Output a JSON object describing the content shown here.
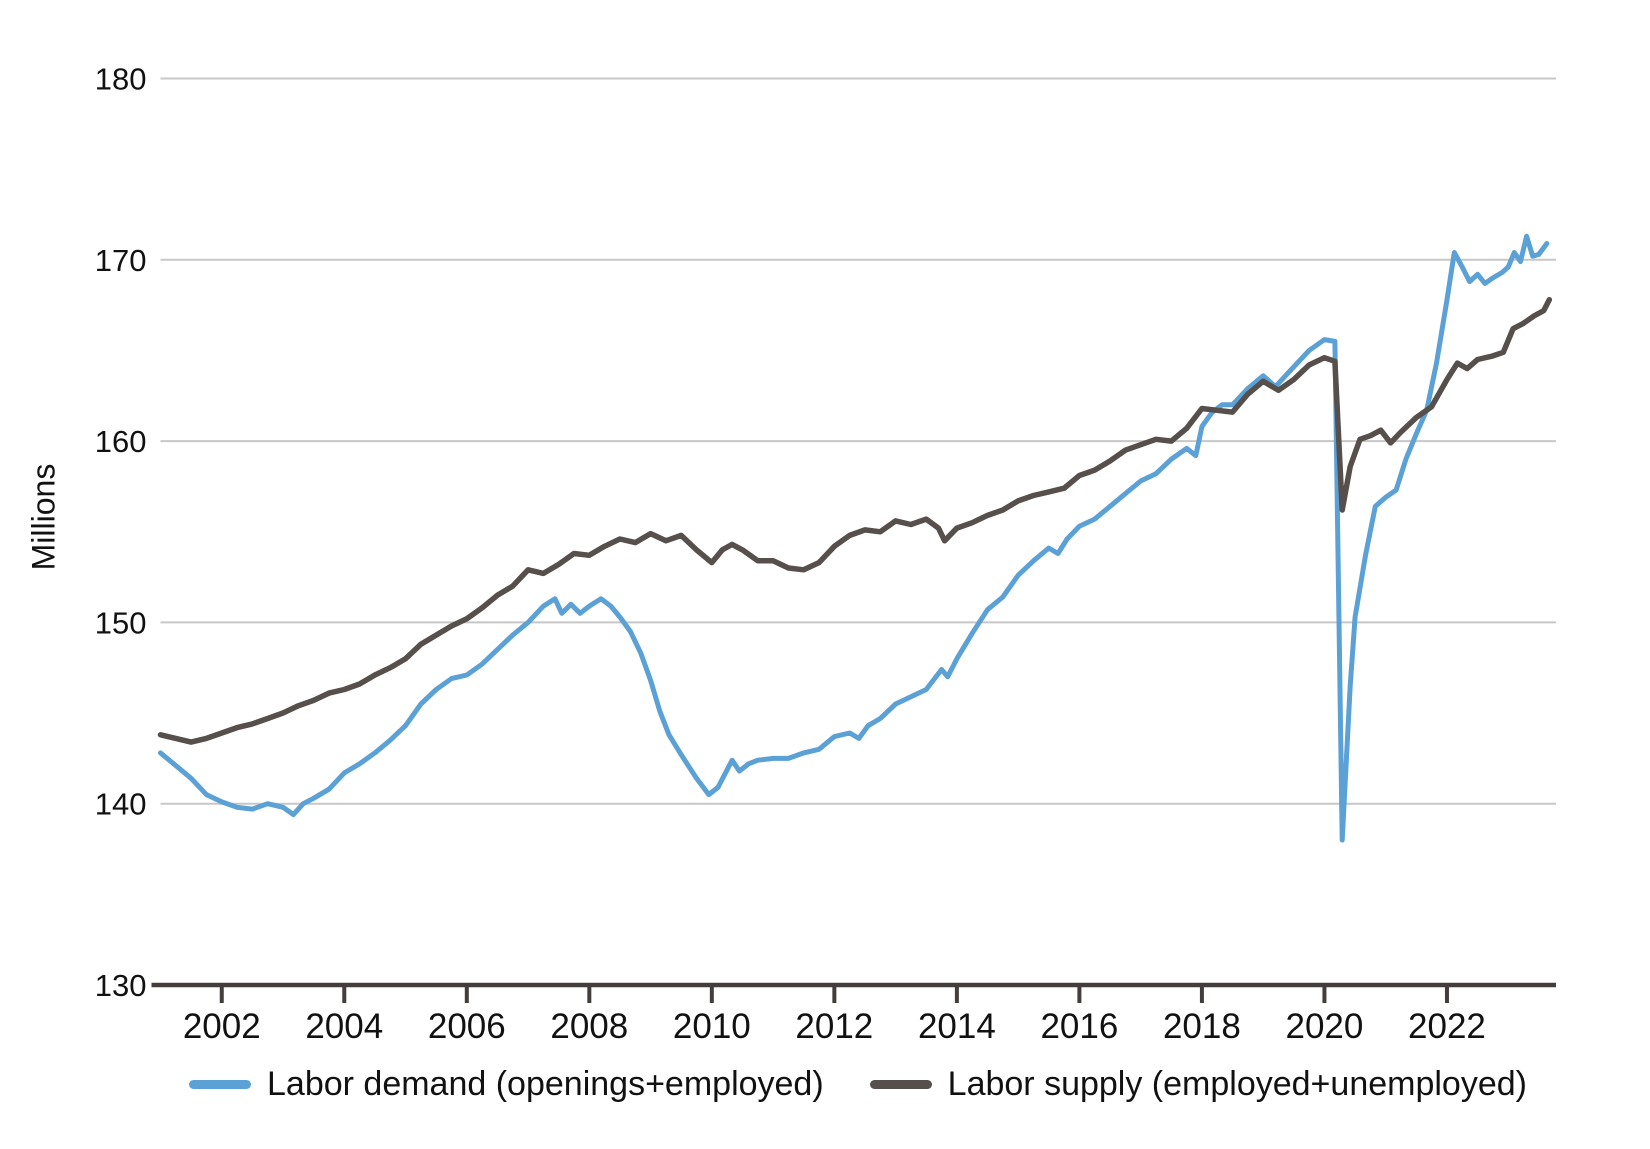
{
  "page": {
    "background": "#ffffff"
  },
  "chart_data": {
    "type": "line",
    "title": "",
    "y_axis": {
      "title": "Millions",
      "min": 130,
      "max": 180,
      "ticks": [
        130,
        140,
        150,
        160,
        170,
        180
      ]
    },
    "x_axis": {
      "min": 2001.0,
      "max": 2023.78,
      "ticks": [
        2002,
        2004,
        2006,
        2008,
        2010,
        2012,
        2014,
        2016,
        2018,
        2020,
        2022
      ]
    },
    "grid": true,
    "legend_position": "bottom",
    "colors": {
      "demand": "#5ba1d6",
      "supply": "#564f4c",
      "grid": "#c7c7c7",
      "axis": "#433d3b",
      "text": "#111111"
    },
    "series": [
      {
        "id": "labor-demand",
        "name": "Labor demand (openings+employed)",
        "color": "#5ba1d6",
        "points": [
          [
            2001.0,
            142.8
          ],
          [
            2001.25,
            142.1
          ],
          [
            2001.5,
            141.4
          ],
          [
            2001.75,
            140.5
          ],
          [
            2002.0,
            140.1
          ],
          [
            2002.25,
            139.8
          ],
          [
            2002.5,
            139.7
          ],
          [
            2002.75,
            140.0
          ],
          [
            2003.0,
            139.8
          ],
          [
            2003.17,
            139.4
          ],
          [
            2003.33,
            140.0
          ],
          [
            2003.5,
            140.3
          ],
          [
            2003.75,
            140.8
          ],
          [
            2004.0,
            141.7
          ],
          [
            2004.25,
            142.2
          ],
          [
            2004.5,
            142.8
          ],
          [
            2004.75,
            143.5
          ],
          [
            2005.0,
            144.3
          ],
          [
            2005.25,
            145.5
          ],
          [
            2005.5,
            146.3
          ],
          [
            2005.75,
            146.9
          ],
          [
            2006.0,
            147.1
          ],
          [
            2006.25,
            147.7
          ],
          [
            2006.5,
            148.5
          ],
          [
            2006.75,
            149.3
          ],
          [
            2007.0,
            150.0
          ],
          [
            2007.25,
            150.9
          ],
          [
            2007.44,
            151.3
          ],
          [
            2007.55,
            150.5
          ],
          [
            2007.7,
            151.0
          ],
          [
            2007.85,
            150.5
          ],
          [
            2008.0,
            150.9
          ],
          [
            2008.19,
            151.3
          ],
          [
            2008.35,
            150.9
          ],
          [
            2008.5,
            150.3
          ],
          [
            2008.67,
            149.5
          ],
          [
            2008.84,
            148.3
          ],
          [
            2009.0,
            146.8
          ],
          [
            2009.15,
            145.1
          ],
          [
            2009.3,
            143.8
          ],
          [
            2009.5,
            142.7
          ],
          [
            2009.75,
            141.4
          ],
          [
            2009.95,
            140.5
          ],
          [
            2010.1,
            140.9
          ],
          [
            2010.33,
            142.4
          ],
          [
            2010.45,
            141.8
          ],
          [
            2010.6,
            142.2
          ],
          [
            2010.75,
            142.4
          ],
          [
            2011.0,
            142.5
          ],
          [
            2011.25,
            142.5
          ],
          [
            2011.5,
            142.8
          ],
          [
            2011.75,
            143.0
          ],
          [
            2012.0,
            143.7
          ],
          [
            2012.25,
            143.9
          ],
          [
            2012.4,
            143.6
          ],
          [
            2012.55,
            144.3
          ],
          [
            2012.75,
            144.7
          ],
          [
            2013.0,
            145.5
          ],
          [
            2013.25,
            145.9
          ],
          [
            2013.5,
            146.3
          ],
          [
            2013.75,
            147.4
          ],
          [
            2013.85,
            147.0
          ],
          [
            2014.0,
            148.0
          ],
          [
            2014.25,
            149.4
          ],
          [
            2014.5,
            150.7
          ],
          [
            2014.75,
            151.4
          ],
          [
            2015.0,
            152.6
          ],
          [
            2015.25,
            153.4
          ],
          [
            2015.5,
            154.1
          ],
          [
            2015.65,
            153.8
          ],
          [
            2015.8,
            154.6
          ],
          [
            2016.0,
            155.3
          ],
          [
            2016.25,
            155.7
          ],
          [
            2016.5,
            156.4
          ],
          [
            2016.75,
            157.1
          ],
          [
            2017.0,
            157.8
          ],
          [
            2017.25,
            158.2
          ],
          [
            2017.5,
            159.0
          ],
          [
            2017.75,
            159.6
          ],
          [
            2017.9,
            159.2
          ],
          [
            2018.0,
            160.8
          ],
          [
            2018.17,
            161.6
          ],
          [
            2018.33,
            162.0
          ],
          [
            2018.5,
            162.0
          ],
          [
            2018.75,
            162.9
          ],
          [
            2019.0,
            163.6
          ],
          [
            2019.2,
            163.0
          ],
          [
            2019.5,
            164.1
          ],
          [
            2019.75,
            165.0
          ],
          [
            2020.0,
            165.6
          ],
          [
            2020.17,
            165.5
          ],
          [
            2020.29,
            138.0
          ],
          [
            2020.42,
            146.5
          ],
          [
            2020.5,
            150.3
          ],
          [
            2020.67,
            153.7
          ],
          [
            2020.83,
            156.4
          ],
          [
            2021.0,
            156.9
          ],
          [
            2021.17,
            157.3
          ],
          [
            2021.33,
            159.0
          ],
          [
            2021.5,
            160.4
          ],
          [
            2021.67,
            161.7
          ],
          [
            2021.83,
            164.3
          ],
          [
            2022.0,
            167.8
          ],
          [
            2022.12,
            170.4
          ],
          [
            2022.25,
            169.6
          ],
          [
            2022.37,
            168.8
          ],
          [
            2022.5,
            169.2
          ],
          [
            2022.62,
            168.7
          ],
          [
            2022.75,
            169.0
          ],
          [
            2022.9,
            169.3
          ],
          [
            2023.0,
            169.6
          ],
          [
            2023.1,
            170.4
          ],
          [
            2023.2,
            169.9
          ],
          [
            2023.3,
            171.3
          ],
          [
            2023.4,
            170.2
          ],
          [
            2023.5,
            170.3
          ],
          [
            2023.63,
            170.9
          ]
        ]
      },
      {
        "id": "labor-supply",
        "name": "Labor supply (employed+unemployed)",
        "color": "#564f4c",
        "points": [
          [
            2001.0,
            143.8
          ],
          [
            2001.25,
            143.6
          ],
          [
            2001.5,
            143.4
          ],
          [
            2001.75,
            143.6
          ],
          [
            2002.0,
            143.9
          ],
          [
            2002.25,
            144.2
          ],
          [
            2002.5,
            144.4
          ],
          [
            2002.75,
            144.7
          ],
          [
            2003.0,
            145.0
          ],
          [
            2003.25,
            145.4
          ],
          [
            2003.5,
            145.7
          ],
          [
            2003.75,
            146.1
          ],
          [
            2004.0,
            146.3
          ],
          [
            2004.25,
            146.6
          ],
          [
            2004.5,
            147.1
          ],
          [
            2004.75,
            147.5
          ],
          [
            2005.0,
            148.0
          ],
          [
            2005.25,
            148.8
          ],
          [
            2005.5,
            149.3
          ],
          [
            2005.75,
            149.8
          ],
          [
            2006.0,
            150.2
          ],
          [
            2006.25,
            150.8
          ],
          [
            2006.5,
            151.5
          ],
          [
            2006.75,
            152.0
          ],
          [
            2007.0,
            152.9
          ],
          [
            2007.25,
            152.7
          ],
          [
            2007.5,
            153.2
          ],
          [
            2007.75,
            153.8
          ],
          [
            2008.0,
            153.7
          ],
          [
            2008.25,
            154.2
          ],
          [
            2008.5,
            154.6
          ],
          [
            2008.75,
            154.4
          ],
          [
            2009.0,
            154.9
          ],
          [
            2009.25,
            154.5
          ],
          [
            2009.5,
            154.8
          ],
          [
            2009.75,
            154.0
          ],
          [
            2010.0,
            153.3
          ],
          [
            2010.17,
            154.0
          ],
          [
            2010.33,
            154.3
          ],
          [
            2010.5,
            154.0
          ],
          [
            2010.75,
            153.4
          ],
          [
            2011.0,
            153.4
          ],
          [
            2011.25,
            153.0
          ],
          [
            2011.5,
            152.9
          ],
          [
            2011.75,
            153.3
          ],
          [
            2012.0,
            154.2
          ],
          [
            2012.25,
            154.8
          ],
          [
            2012.5,
            155.1
          ],
          [
            2012.75,
            155.0
          ],
          [
            2013.0,
            155.6
          ],
          [
            2013.25,
            155.4
          ],
          [
            2013.5,
            155.7
          ],
          [
            2013.7,
            155.2
          ],
          [
            2013.8,
            154.5
          ],
          [
            2014.0,
            155.2
          ],
          [
            2014.25,
            155.5
          ],
          [
            2014.5,
            155.9
          ],
          [
            2014.75,
            156.2
          ],
          [
            2015.0,
            156.7
          ],
          [
            2015.25,
            157.0
          ],
          [
            2015.5,
            157.2
          ],
          [
            2015.75,
            157.4
          ],
          [
            2016.0,
            158.1
          ],
          [
            2016.25,
            158.4
          ],
          [
            2016.5,
            158.9
          ],
          [
            2016.75,
            159.5
          ],
          [
            2017.0,
            159.8
          ],
          [
            2017.25,
            160.1
          ],
          [
            2017.5,
            160.0
          ],
          [
            2017.75,
            160.7
          ],
          [
            2018.0,
            161.8
          ],
          [
            2018.25,
            161.7
          ],
          [
            2018.5,
            161.6
          ],
          [
            2018.75,
            162.6
          ],
          [
            2019.0,
            163.3
          ],
          [
            2019.25,
            162.8
          ],
          [
            2019.5,
            163.4
          ],
          [
            2019.75,
            164.2
          ],
          [
            2020.0,
            164.6
          ],
          [
            2020.17,
            164.4
          ],
          [
            2020.29,
            156.2
          ],
          [
            2020.42,
            158.6
          ],
          [
            2020.58,
            160.1
          ],
          [
            2020.75,
            160.3
          ],
          [
            2020.92,
            160.6
          ],
          [
            2021.08,
            159.9
          ],
          [
            2021.25,
            160.5
          ],
          [
            2021.5,
            161.3
          ],
          [
            2021.75,
            161.9
          ],
          [
            2022.0,
            163.4
          ],
          [
            2022.17,
            164.3
          ],
          [
            2022.33,
            164.0
          ],
          [
            2022.5,
            164.5
          ],
          [
            2022.75,
            164.7
          ],
          [
            2022.92,
            164.9
          ],
          [
            2023.08,
            166.2
          ],
          [
            2023.25,
            166.5
          ],
          [
            2023.42,
            166.9
          ],
          [
            2023.58,
            167.2
          ],
          [
            2023.67,
            167.8
          ]
        ]
      }
    ]
  }
}
